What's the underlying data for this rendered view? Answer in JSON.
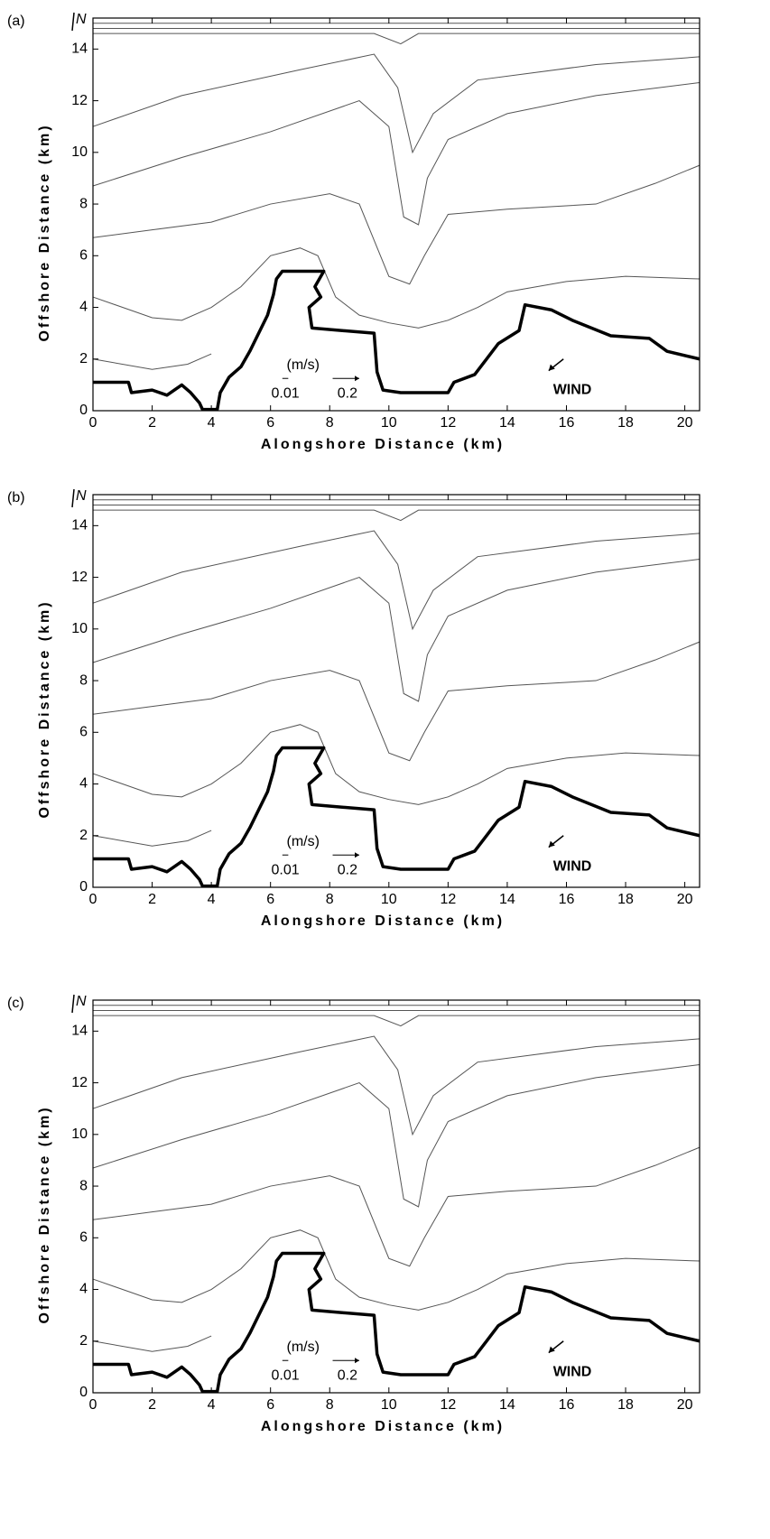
{
  "chart_data": [
    {
      "type": "quiver",
      "panel_label": "(a)",
      "x_label": "Alongshore Distance (km)",
      "y_label": "Offshore Distance (km)",
      "xlim": [
        0,
        20.5
      ],
      "ylim": [
        0,
        15.2
      ],
      "xticks": [
        0,
        2,
        4,
        6,
        8,
        10,
        12,
        14,
        16,
        18,
        20
      ],
      "yticks": [
        0,
        2,
        4,
        6,
        8,
        10,
        12,
        14
      ],
      "annotations": {
        "units": "(m/s)",
        "scale_small": "0.01",
        "scale_large": "0.2",
        "wind": "WIND",
        "north": "N"
      }
    },
    {
      "type": "quiver",
      "panel_label": "(b)",
      "x_label": "Alongshore Distance (km)",
      "y_label": "Offshore Distance (km)",
      "xlim": [
        0,
        20.5
      ],
      "ylim": [
        0,
        15.2
      ],
      "xticks": [
        0,
        2,
        4,
        6,
        8,
        10,
        12,
        14,
        16,
        18,
        20
      ],
      "yticks": [
        0,
        2,
        4,
        6,
        8,
        10,
        12,
        14
      ],
      "annotations": {
        "units": "(m/s)",
        "scale_small": "0.01",
        "scale_large": "0.2",
        "wind": "WIND",
        "north": "N"
      }
    },
    {
      "type": "quiver",
      "panel_label": "(c)",
      "x_label": "Alongshore Distance (km)",
      "y_label": "Offshore Distance (km)",
      "xlim": [
        0,
        20.5
      ],
      "ylim": [
        0,
        15.2
      ],
      "xticks": [
        0,
        2,
        4,
        6,
        8,
        10,
        12,
        14,
        16,
        18,
        20
      ],
      "yticks": [
        0,
        2,
        4,
        6,
        8,
        10,
        12,
        14
      ],
      "annotations": {
        "units": "(m/s)",
        "scale_small": "0.01",
        "scale_large": "0.2",
        "wind": "WIND",
        "north": "N"
      }
    }
  ]
}
